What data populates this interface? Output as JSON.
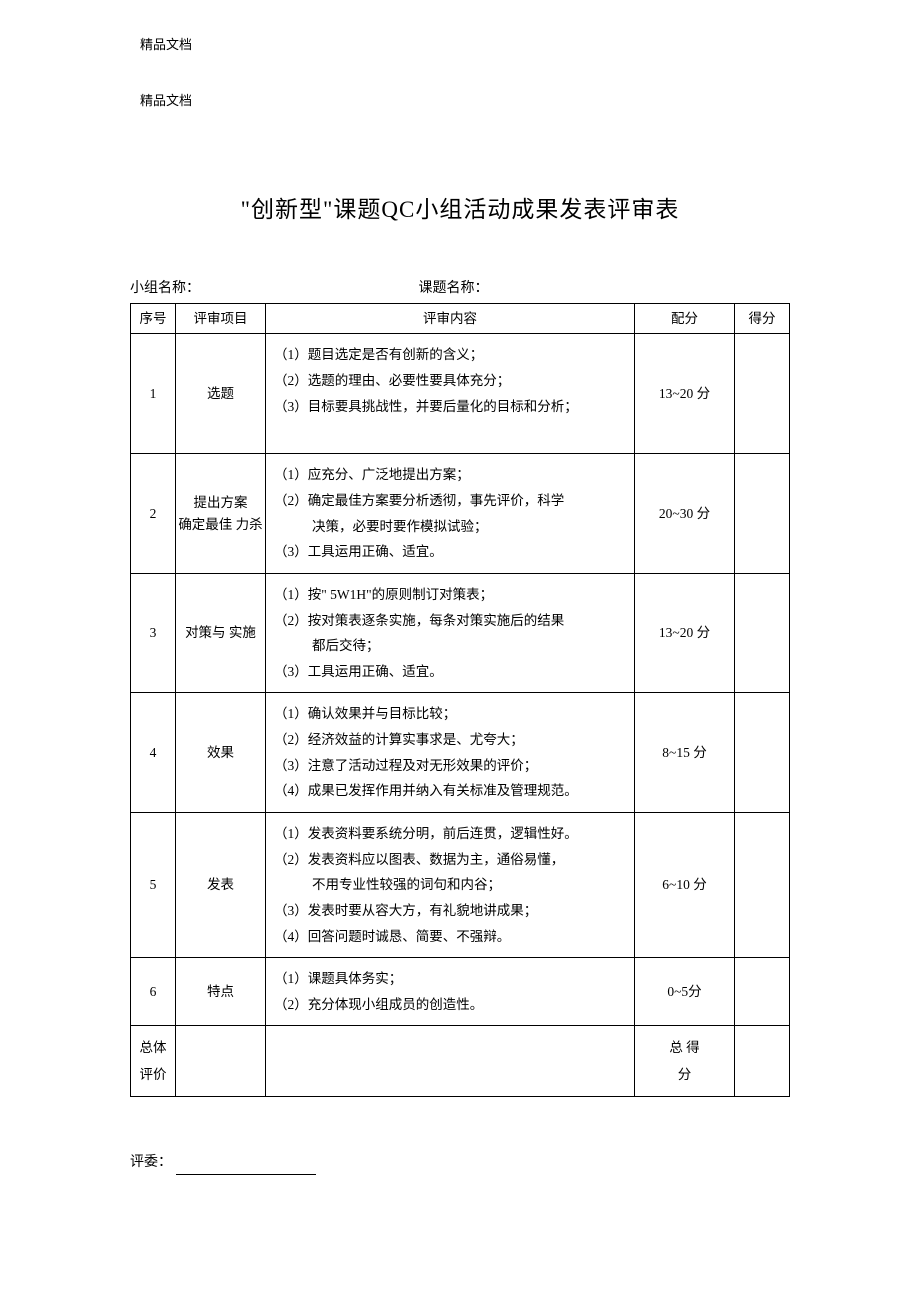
{
  "header": "精品文档",
  "subheader": "精品文档",
  "title": "\"创新型\"课题QC小组活动成果发表评审表",
  "meta": {
    "group_label": "小组名称：",
    "topic_label": "课题名称："
  },
  "table": {
    "headers": {
      "seq": "序号",
      "item": "评审项目",
      "content": "评审内容",
      "points": "配分",
      "score": "得分"
    },
    "rows": [
      {
        "seq": "1",
        "item": "选题",
        "content_lines": [
          "（1）题目选定是否有创新的含义；",
          "（2）选题的理由、必要性要具体充分；",
          "（3）目标要具挑战性，并要后量化的目标和分析；"
        ],
        "points": "13~20 分"
      },
      {
        "seq": "2",
        "item_l1": "提出方案",
        "item_l2": "确定最佳 力杀",
        "content_lines": [
          "（1）应充分、广泛地提出方案；",
          "（2）确定最佳方案要分析透彻，事先评价，科学",
          "决策，必要时要作模拟试验；",
          "（3）工具运用正确、适宜。"
        ],
        "indent_idx": 2,
        "points": "20~30 分"
      },
      {
        "seq": "3",
        "item": "对策与 实施",
        "content_lines": [
          "（1）按\" 5W1H\"的原则制订对策表；",
          "（2）按对策表逐条实施，每条对策实施后的结果",
          "都后交待；",
          "（3）工具运用正确、适宜。"
        ],
        "indent_idx": 2,
        "points": "13~20 分"
      },
      {
        "seq": "4",
        "item": "效果",
        "content_lines": [
          "（1）确认效果并与目标比较；",
          "（2）经济效益的计算实事求是、尤夸大；",
          "（3）注意了活动过程及对无形效果的评价；",
          "（4）成果已发挥作用并纳入有关标准及管理规范。"
        ],
        "points": "8~15 分"
      },
      {
        "seq": "5",
        "item": "发表",
        "content_lines": [
          "（1）发表资料要系统分明，前后连贯，逻辑性好。",
          "（2）发表资料应以图表、数据为主，通俗易懂，",
          "不用专业性较强的词句和内谷；",
          "（3）发表时要从容大方，有礼貌地讲成果；",
          "（4）回答问题时诚恳、简要、不强辩。"
        ],
        "indent_idx": 2,
        "points": "6~10 分"
      },
      {
        "seq": "6",
        "item": "特点",
        "content_lines": [
          "（1）课题具体务实；",
          "（2）充分体现小组成员的创造性。"
        ],
        "points": "0~5分"
      }
    ],
    "footer": {
      "overall_l1": "总体",
      "overall_l2": "评价",
      "total_l1": "总 得",
      "total_l2": "分"
    }
  },
  "judge_label": "评委："
}
